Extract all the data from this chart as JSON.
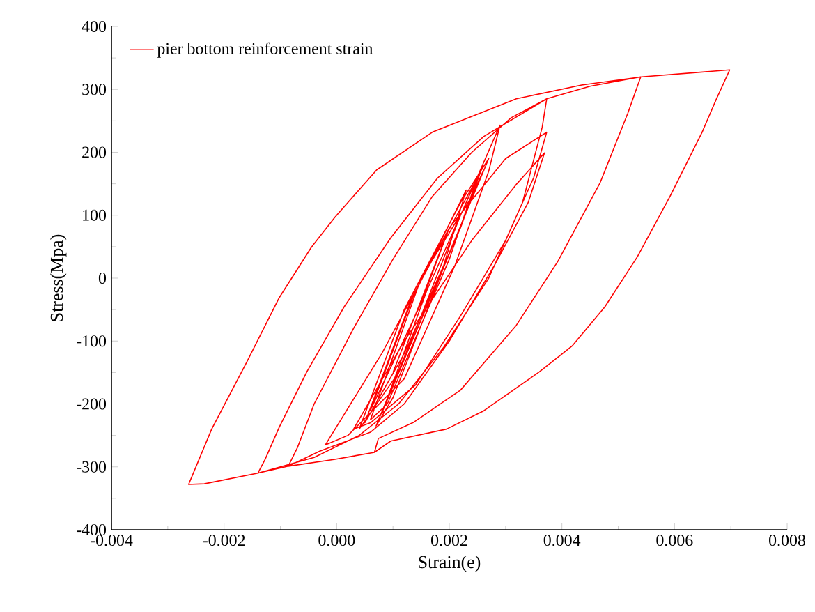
{
  "chart_data": {
    "type": "line",
    "xlabel": "Strain(e)",
    "ylabel": "Stress(Mpa)",
    "legend": "top left",
    "xlim": [
      -0.004,
      0.008
    ],
    "ylim": [
      -400,
      400
    ],
    "xticks": [
      -0.004,
      -0.002,
      {
        "value": 0,
        "label": "0.000"
      },
      0.002,
      0.004,
      0.006,
      0.008
    ],
    "yticks": [
      -400,
      -300,
      -200,
      -100,
      0,
      100,
      200,
      300,
      400
    ],
    "series": [
      {
        "name": "pier bottom reinforcement strain",
        "color": "#ff0000",
        "x": [
          0.001,
          0.002,
          0.0015,
          0.0006,
          0.0014,
          0.0025,
          0.002,
          0.0009,
          0.0006,
          0.0015,
          0.0024,
          0.0026,
          0.0021,
          0.0012,
          0.0005,
          0.0013,
          0.0023,
          0.0019,
          0.0008,
          0.0016,
          0.0026,
          0.0022,
          0.0011,
          0.0004,
          0.0012,
          0.0022,
          0.0027,
          0.002,
          0.001,
          0.0007,
          0.0015,
          0.0022,
          0.0029,
          0.0027,
          0.0021,
          0.0012,
          0.0002,
          -0.0002,
          0.0008,
          0.002,
          0.003,
          0.00373,
          0.0035,
          0.003,
          0.0022,
          0.0014,
          0.0006,
          0.0003,
          0.0012,
          0.0024,
          0.0032,
          0.00369,
          0.0034,
          0.0028,
          0.002,
          0.0012,
          0.0006,
          -0.0003,
          -0.00086,
          -0.0007,
          -0.0004,
          0.0003,
          0.001,
          0.0017,
          0.0024,
          0.0031,
          0.00373,
          0.00365,
          0.0033,
          0.0027,
          0.0019,
          0.0011,
          0.0004,
          -0.0004,
          -0.0014,
          -0.00127,
          -0.00102,
          -0.00053,
          0.00013,
          0.00096,
          0.00179,
          0.00261,
          0.00373,
          0.0045,
          0.0054,
          0.00517,
          0.00468,
          0.00393,
          0.00319,
          0.0022,
          0.00137,
          0.00074,
          0.00067,
          -3e-05,
          -0.00086,
          -0.0014,
          -0.00235,
          -0.00263,
          -0.00222,
          -0.0016,
          -0.00102,
          -0.00045,
          -3e-05,
          0.00071,
          0.0017,
          0.00319,
          0.00435,
          0.00542,
          0.00698,
          0.00674,
          0.00649,
          0.00592,
          0.00534,
          0.00476,
          0.00418,
          0.0036,
          0.00261,
          0.00195,
          0.00096,
          0.00067,
          0.00074
        ],
        "values": [
          -150,
          80,
          -40,
          -210,
          -20,
          160,
          30,
          -200,
          -225,
          0,
          130,
          170,
          60,
          -120,
          -230,
          -40,
          140,
          20,
          -215,
          -20,
          180,
          80,
          -150,
          -240,
          -50,
          120,
          190,
          40,
          -190,
          -235,
          -60,
          100,
          243,
          170,
          20,
          -160,
          -250,
          -265,
          -120,
          80,
          190,
          232,
          160,
          60,
          -60,
          -170,
          -230,
          -240,
          -100,
          60,
          150,
          199,
          120,
          20,
          -100,
          -200,
          -245,
          -275,
          -299,
          -270,
          -200,
          -80,
          30,
          130,
          200,
          255,
          285,
          240,
          120,
          0,
          -110,
          -200,
          -250,
          -285,
          -310,
          -288,
          -237,
          -149,
          -46,
          64,
          159,
          225,
          285,
          305,
          320,
          262,
          152,
          27,
          -75,
          -178,
          -229,
          -255,
          -277,
          -288,
          -299,
          -310,
          -327,
          -328,
          -240,
          -134,
          -31,
          49,
          97,
          172,
          232,
          285,
          307,
          320,
          331,
          284,
          232,
          130,
          34,
          -46,
          -108,
          -149,
          -211,
          -240,
          -259,
          -277,
          -255
        ]
      }
    ]
  }
}
